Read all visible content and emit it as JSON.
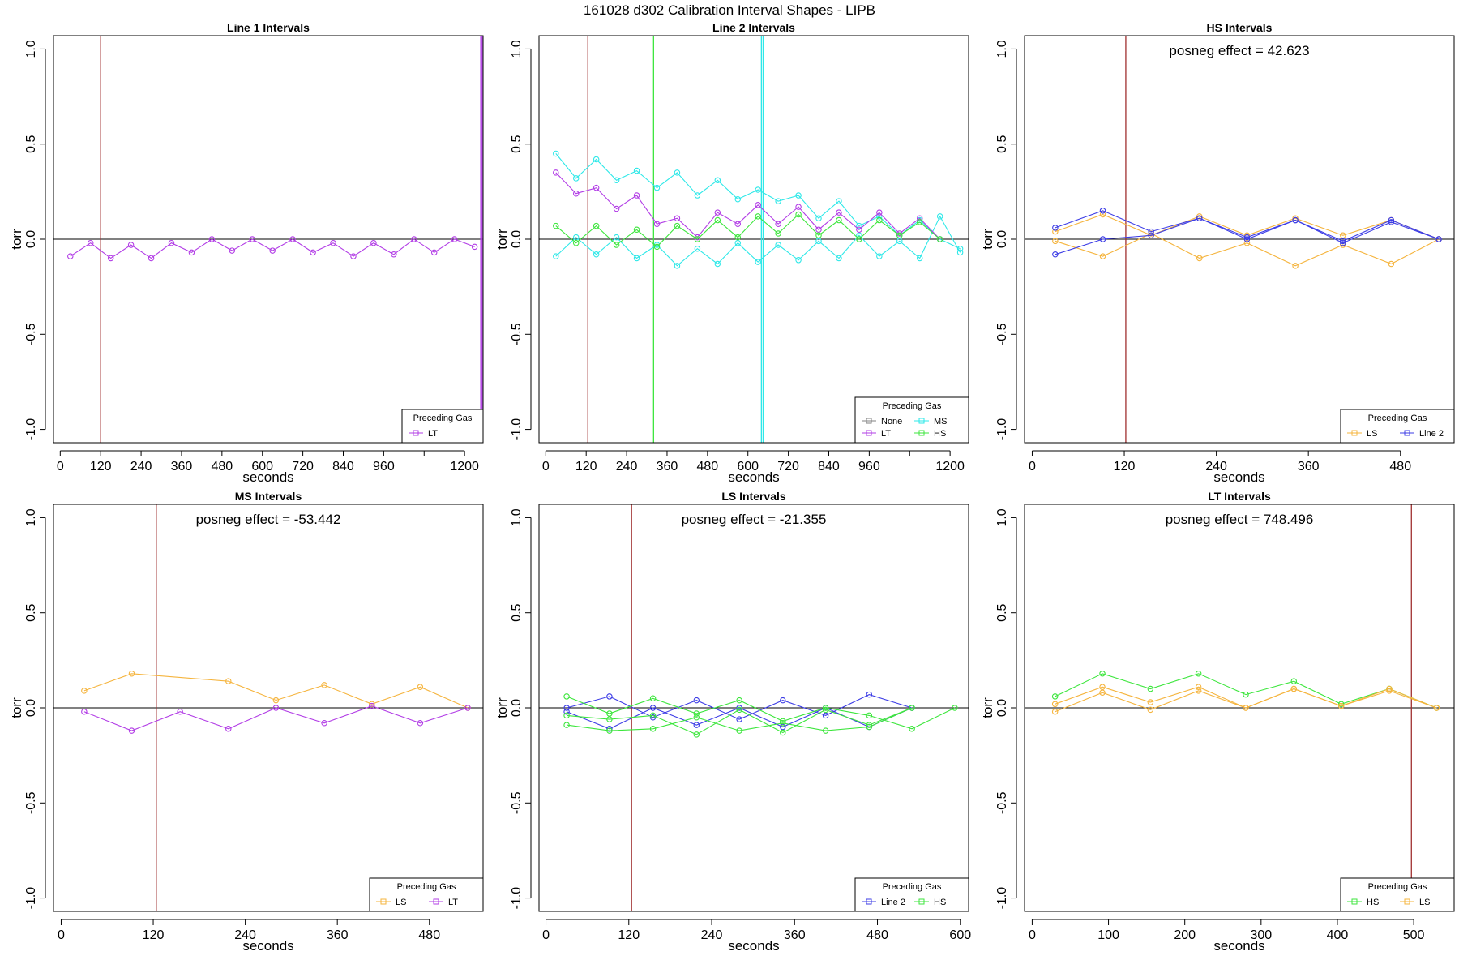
{
  "figure_title": "161028   d302   Calibration Interval Shapes - LIPB",
  "colors": {
    "LT": "#b23de6",
    "MS": "#2ee8e8",
    "HS": "#3de63d",
    "LS": "#f5b43d",
    "Line 2": "#3d3de6",
    "None": "#808080",
    "marker_line": "#a03030",
    "axis": "#000000"
  },
  "chart_data": [
    {
      "type": "line",
      "title": "Line 1 Intervals",
      "xlabel": "seconds",
      "ylabel": "torr",
      "xlim": [
        -20,
        1255
      ],
      "ylim": [
        -1.07,
        1.07
      ],
      "xticks": [
        0,
        120,
        240,
        360,
        480,
        600,
        720,
        840,
        960,
        1080,
        1200
      ],
      "xtick_labels": [
        "0",
        "120",
        "240",
        "360",
        "480",
        "600",
        "720",
        "840",
        "960",
        "",
        "1200"
      ],
      "yticks": [
        -1.0,
        -0.5,
        0.0,
        0.5,
        1.0
      ],
      "ytick_labels": [
        "-1.0",
        "-0.5",
        "0.0",
        "0.5",
        "1.0"
      ],
      "vlines": [
        {
          "x": 120,
          "color": "#a03030"
        },
        {
          "x": 1248,
          "color": "#b23de6"
        },
        {
          "x": 1252,
          "color": "#b23de6"
        }
      ],
      "annotation": "",
      "legend": {
        "title": "Preceding Gas",
        "position": "bottom-right",
        "cols": 1,
        "entries": [
          "LT"
        ]
      },
      "series": [
        {
          "name": "LT",
          "color": "#b23de6",
          "x": [
            30,
            90,
            150,
            210,
            270,
            330,
            390,
            450,
            510,
            570,
            630,
            690,
            750,
            810,
            870,
            930,
            990,
            1050,
            1110,
            1170,
            1230
          ],
          "y": [
            -0.09,
            -0.02,
            -0.1,
            -0.03,
            -0.1,
            -0.02,
            -0.07,
            0.0,
            -0.06,
            0.0,
            -0.06,
            0.0,
            -0.07,
            -0.02,
            -0.09,
            -0.02,
            -0.08,
            0.0,
            -0.07,
            0.0,
            -0.04
          ]
        }
      ]
    },
    {
      "type": "line",
      "title": "Line 2 Intervals",
      "xlabel": "seconds",
      "ylabel": "torr",
      "xlim": [
        -20,
        1255
      ],
      "ylim": [
        -1.07,
        1.07
      ],
      "xticks": [
        0,
        120,
        240,
        360,
        480,
        600,
        720,
        840,
        960,
        1080,
        1200
      ],
      "xtick_labels": [
        "0",
        "120",
        "240",
        "360",
        "480",
        "600",
        "720",
        "840",
        "960",
        "",
        "1200"
      ],
      "yticks": [
        -1.0,
        -0.5,
        0.0,
        0.5,
        1.0
      ],
      "ytick_labels": [
        "-1.0",
        "-0.5",
        "0.0",
        "0.5",
        "1.0"
      ],
      "vlines": [
        {
          "x": 125,
          "color": "#a03030"
        },
        {
          "x": 320,
          "color": "#3de63d"
        },
        {
          "x": 640,
          "color": "#2ee8e8"
        },
        {
          "x": 645,
          "color": "#2ee8e8"
        }
      ],
      "annotation": "",
      "legend": {
        "title": "Preceding Gas",
        "position": "bottom-right",
        "cols": 2,
        "entries": [
          "None",
          "MS",
          "LT",
          "HS"
        ]
      },
      "series": [
        {
          "name": "None",
          "color": "#808080",
          "x": [],
          "y": []
        },
        {
          "name": "MS",
          "color": "#2ee8e8",
          "x": [
            30,
            90,
            150,
            210,
            270,
            330,
            390,
            450,
            510,
            570,
            630,
            690,
            750,
            810,
            870,
            930,
            990,
            1050,
            1110,
            1170,
            1230
          ],
          "y": [
            0.45,
            0.32,
            0.42,
            0.31,
            0.36,
            0.27,
            0.35,
            0.23,
            0.31,
            0.21,
            0.26,
            0.2,
            0.23,
            0.11,
            0.2,
            0.07,
            0.12,
            0.02,
            0.1,
            0.0,
            -0.05
          ]
        },
        {
          "name": "MS",
          "color": "#2ee8e8",
          "x": [
            30,
            90,
            150,
            210,
            270,
            330,
            390,
            450,
            510,
            570,
            630,
            690,
            750,
            810,
            870,
            930,
            990,
            1050,
            1110,
            1170,
            1230
          ],
          "y": [
            -0.09,
            0.01,
            -0.08,
            0.01,
            -0.1,
            -0.03,
            -0.14,
            -0.05,
            -0.13,
            -0.02,
            -0.12,
            -0.03,
            -0.11,
            -0.01,
            -0.1,
            0.02,
            -0.09,
            -0.01,
            -0.1,
            0.12,
            -0.07
          ]
        },
        {
          "name": "LT",
          "color": "#b23de6",
          "x": [
            30,
            90,
            150,
            210,
            270,
            330,
            390,
            450,
            510,
            570,
            630,
            690,
            750,
            810,
            870,
            930,
            990,
            1050,
            1110,
            1170
          ],
          "y": [
            0.35,
            0.24,
            0.27,
            0.16,
            0.23,
            0.08,
            0.11,
            0.01,
            0.14,
            0.08,
            0.18,
            0.08,
            0.17,
            0.05,
            0.14,
            0.05,
            0.14,
            0.03,
            0.11,
            0.0
          ]
        },
        {
          "name": "HS",
          "color": "#3de63d",
          "x": [
            30,
            90,
            150,
            210,
            270,
            330,
            390,
            450,
            510,
            570,
            630,
            690,
            750,
            810,
            870,
            930,
            990,
            1050,
            1110,
            1170
          ],
          "y": [
            0.07,
            -0.02,
            0.07,
            -0.03,
            0.05,
            -0.04,
            0.07,
            0.0,
            0.1,
            0.01,
            0.12,
            0.03,
            0.13,
            0.02,
            0.1,
            0.0,
            0.1,
            0.02,
            0.09,
            0.0
          ]
        }
      ]
    },
    {
      "type": "line",
      "title": "HS Intervals",
      "xlabel": "seconds",
      "ylabel": "torr",
      "xlim": [
        -10,
        550
      ],
      "ylim": [
        -1.07,
        1.07
      ],
      "xticks": [
        0,
        120,
        240,
        360,
        480
      ],
      "xtick_labels": [
        "0",
        "120",
        "240",
        "360",
        "480"
      ],
      "yticks": [
        -1.0,
        -0.5,
        0.0,
        0.5,
        1.0
      ],
      "ytick_labels": [
        "-1.0",
        "-0.5",
        "0.0",
        "0.5",
        "1.0"
      ],
      "vlines": [
        {
          "x": 122,
          "color": "#a03030"
        }
      ],
      "annotation": "posneg effect = 42.623",
      "legend": {
        "title": "Preceding Gas",
        "position": "bottom-right",
        "cols": 2,
        "entries": [
          "LS",
          "Line 2"
        ]
      },
      "series": [
        {
          "name": "LS",
          "color": "#f5b43d",
          "x": [
            30,
            92,
            155,
            218,
            280,
            343,
            405,
            468,
            530
          ],
          "y": [
            -0.01,
            -0.09,
            0.03,
            -0.1,
            -0.02,
            -0.14,
            -0.03,
            -0.13,
            0.0
          ]
        },
        {
          "name": "LS",
          "color": "#f5b43d",
          "x": [
            30,
            92,
            155,
            218,
            280,
            343,
            405,
            468,
            530
          ],
          "y": [
            0.04,
            0.13,
            0.02,
            0.12,
            0.02,
            0.11,
            0.02,
            0.1,
            0.0
          ]
        },
        {
          "name": "Line 2",
          "color": "#3d3de6",
          "x": [
            30,
            92,
            155,
            218,
            280,
            343,
            405,
            468,
            530
          ],
          "y": [
            0.06,
            0.15,
            0.04,
            0.11,
            0.01,
            0.1,
            -0.01,
            0.1,
            0.0
          ]
        },
        {
          "name": "Line 2",
          "color": "#3d3de6",
          "x": [
            30,
            92,
            155,
            218,
            280,
            343,
            405,
            468,
            530
          ],
          "y": [
            -0.08,
            0.0,
            0.02,
            0.11,
            0.0,
            0.1,
            -0.02,
            0.09,
            0.0
          ]
        }
      ]
    },
    {
      "type": "line",
      "title": "MS Intervals",
      "xlabel": "seconds",
      "ylabel": "torr",
      "xlim": [
        -10,
        550
      ],
      "ylim": [
        -1.07,
        1.07
      ],
      "xticks": [
        0,
        120,
        240,
        360,
        480
      ],
      "xtick_labels": [
        "0",
        "120",
        "240",
        "360",
        "480"
      ],
      "yticks": [
        -1.0,
        -0.5,
        0.0,
        0.5,
        1.0
      ],
      "ytick_labels": [
        "-1.0",
        "-0.5",
        "0.0",
        "0.5",
        "1.0"
      ],
      "vlines": [
        {
          "x": 124,
          "color": "#a03030"
        }
      ],
      "annotation": "posneg effect = -53.442",
      "legend": {
        "title": "Preceding Gas",
        "position": "bottom-right",
        "cols": 2,
        "entries": [
          "LS",
          "LT"
        ]
      },
      "series": [
        {
          "name": "LS",
          "color": "#f5b43d",
          "x": [
            30,
            92,
            218,
            280,
            343,
            405,
            468,
            530
          ],
          "y": [
            0.09,
            0.18,
            0.14,
            0.04,
            0.12,
            0.02,
            0.11,
            0.0
          ]
        },
        {
          "name": "LT",
          "color": "#b23de6",
          "x": [
            30,
            92,
            155,
            218,
            280,
            343,
            405,
            468,
            530
          ],
          "y": [
            -0.02,
            -0.12,
            -0.02,
            -0.11,
            0.0,
            -0.08,
            0.01,
            -0.08,
            0.0
          ]
        }
      ]
    },
    {
      "type": "line",
      "title": "LS Intervals",
      "xlabel": "seconds",
      "ylabel": "torr",
      "xlim": [
        -10,
        612
      ],
      "ylim": [
        -1.07,
        1.07
      ],
      "xticks": [
        0,
        120,
        240,
        360,
        480,
        600
      ],
      "xtick_labels": [
        "0",
        "120",
        "240",
        "360",
        "480",
        "600"
      ],
      "yticks": [
        -1.0,
        -0.5,
        0.0,
        0.5,
        1.0
      ],
      "ytick_labels": [
        "-1.0",
        "-0.5",
        "0.0",
        "0.5",
        "1.0"
      ],
      "vlines": [
        {
          "x": 124,
          "color": "#a03030"
        }
      ],
      "annotation": "posneg effect = -21.355",
      "legend": {
        "title": "Preceding Gas",
        "position": "bottom-right",
        "cols": 2,
        "entries": [
          "Line 2",
          "HS"
        ]
      },
      "series": [
        {
          "name": "Line 2",
          "color": "#3d3de6",
          "x": [
            30,
            92,
            155,
            218,
            280,
            343,
            405,
            468,
            530
          ],
          "y": [
            0.0,
            0.06,
            -0.05,
            0.04,
            -0.06,
            0.04,
            -0.04,
            0.07,
            0.0
          ]
        },
        {
          "name": "Line 2",
          "color": "#3d3de6",
          "x": [
            30,
            92,
            155,
            218,
            280,
            343,
            405,
            468,
            530
          ],
          "y": [
            -0.02,
            -0.11,
            0.0,
            -0.09,
            0.0,
            -0.1,
            0.0,
            -0.1,
            0.0
          ]
        },
        {
          "name": "HS",
          "color": "#3de63d",
          "x": [
            30,
            92,
            155,
            218,
            280,
            343,
            405,
            468,
            530,
            592
          ],
          "y": [
            0.06,
            -0.03,
            0.05,
            -0.03,
            0.04,
            -0.07,
            0.0,
            -0.04,
            -0.11,
            0.0
          ]
        },
        {
          "name": "HS",
          "color": "#3de63d",
          "x": [
            30,
            92,
            155,
            218,
            280,
            343,
            405,
            468,
            530
          ],
          "y": [
            -0.04,
            -0.06,
            -0.04,
            -0.14,
            -0.01,
            -0.13,
            -0.01,
            -0.09,
            0.0
          ]
        },
        {
          "name": "HS",
          "color": "#3de63d",
          "x": [
            30,
            92,
            155,
            218,
            280,
            343,
            405,
            468,
            530
          ],
          "y": [
            -0.09,
            -0.12,
            -0.11,
            -0.05,
            -0.12,
            -0.08,
            -0.12,
            -0.1,
            0.0
          ]
        }
      ]
    },
    {
      "type": "line",
      "title": "LT Intervals",
      "xlabel": "seconds",
      "ylabel": "torr",
      "xlim": [
        -10,
        553
      ],
      "ylim": [
        -1.07,
        1.07
      ],
      "xticks": [
        0,
        100,
        200,
        300,
        400,
        500
      ],
      "xtick_labels": [
        "0",
        "100",
        "200",
        "300",
        "400",
        "500"
      ],
      "yticks": [
        -1.0,
        -0.5,
        0.0,
        0.5,
        1.0
      ],
      "ytick_labels": [
        "-1.0",
        "-0.5",
        "0.0",
        "0.5",
        "1.0"
      ],
      "vlines": [
        {
          "x": 497,
          "color": "#a03030"
        }
      ],
      "annotation": "posneg effect = 748.496",
      "legend": {
        "title": "Preceding Gas",
        "position": "bottom-right",
        "cols": 2,
        "entries": [
          "HS",
          "LS"
        ]
      },
      "series": [
        {
          "name": "HS",
          "color": "#3de63d",
          "x": [
            30,
            92,
            155,
            218,
            280,
            343,
            405,
            468,
            530
          ],
          "y": [
            0.06,
            0.18,
            0.1,
            0.18,
            0.07,
            0.14,
            0.02,
            0.1,
            0.0
          ]
        },
        {
          "name": "LS",
          "color": "#f5b43d",
          "x": [
            30,
            92,
            155,
            218,
            280,
            343,
            405,
            468,
            530
          ],
          "y": [
            0.02,
            0.11,
            0.03,
            0.11,
            0.0,
            0.1,
            0.01,
            0.1,
            0.0
          ]
        },
        {
          "name": "LS",
          "color": "#f5b43d",
          "x": [
            30,
            92,
            155,
            218,
            280,
            343,
            405,
            468,
            530
          ],
          "y": [
            -0.02,
            0.08,
            -0.01,
            0.09,
            0.0,
            0.1,
            0.01,
            0.09,
            0.0
          ]
        }
      ]
    }
  ]
}
